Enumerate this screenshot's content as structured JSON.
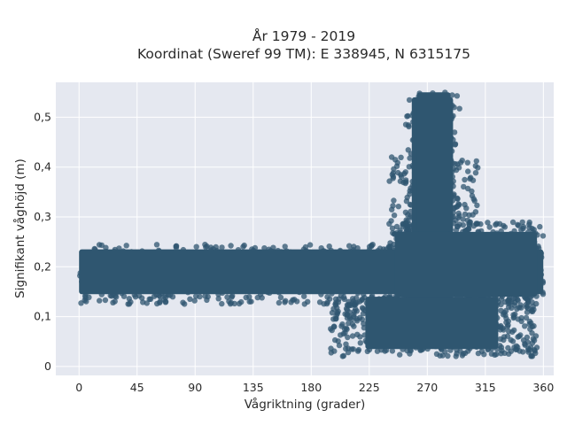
{
  "chart_data": {
    "type": "scatter",
    "title_line1": "År 1979 - 2019",
    "title_line2": "Koordinat (Sweref 99 TM): E 338945, N 6315175",
    "xlabel": "Vågriktning (grader)",
    "ylabel": "Signifikant våghöjd (m)",
    "xlim": [
      -18,
      368
    ],
    "ylim": [
      -0.018,
      0.57
    ],
    "x_ticks": [
      0,
      45,
      90,
      135,
      180,
      225,
      270,
      315,
      360
    ],
    "x_tick_labels": [
      "0",
      "45",
      "90",
      "135",
      "180",
      "225",
      "270",
      "315",
      "360"
    ],
    "y_ticks": [
      0,
      0.1,
      0.2,
      0.3,
      0.4,
      0.5
    ],
    "y_tick_labels": [
      "0",
      "0,1",
      "0,2",
      "0,3",
      "0,4",
      "0,5"
    ],
    "grid": true,
    "marker_color": "#2f5670",
    "background_color": "#e5e8f0",
    "point_groups": [
      {
        "name": "band",
        "x_range": [
          0,
          360
        ],
        "y_range": [
          0.13,
          0.24
        ],
        "density": "high"
      },
      {
        "name": "peak",
        "x_range": [
          255,
          292
        ],
        "y_range": [
          0.03,
          0.55
        ],
        "density": "high"
      },
      {
        "name": "low_spread",
        "x_range": [
          195,
          355
        ],
        "y_range": [
          0.02,
          0.14
        ],
        "density": "medium"
      },
      {
        "name": "shoulder",
        "x_range": [
          240,
          360
        ],
        "y_range": [
          0.14,
          0.29
        ],
        "density": "medium"
      }
    ]
  }
}
